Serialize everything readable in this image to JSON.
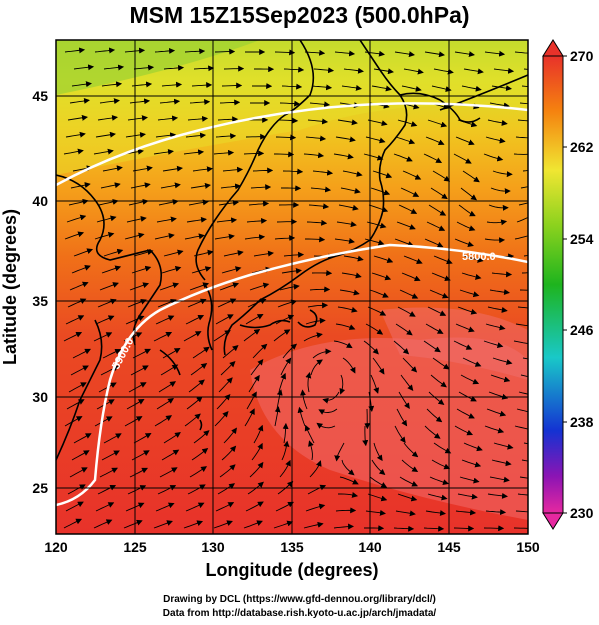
{
  "title": "MSM 15Z15Sep2023 (500.0hPa)",
  "axes": {
    "xlabel": "Longitude (degrees)",
    "ylabel": "Latitude  (degrees)",
    "xticks": [
      "120",
      "125",
      "130",
      "135",
      "140",
      "145",
      "150"
    ],
    "yticks": [
      "25",
      "30",
      "35",
      "40",
      "45"
    ],
    "xlim": [
      120,
      150
    ],
    "ylim": [
      22.4,
      47.6
    ]
  },
  "colorbar": {
    "ticks": [
      "270",
      "262",
      "254",
      "246",
      "238",
      "230"
    ],
    "range": [
      230,
      270
    ],
    "colors": {
      "max": "#e8322a",
      "orange": "#f5820f",
      "yellow": "#f0e632",
      "green": "#1eb41e",
      "cyan": "#19c8c8",
      "blue": "#1432d2",
      "violet": "#8c14b4",
      "min": "#e628a0"
    }
  },
  "contours": [
    {
      "label": "5900.0",
      "color": "#ffffff"
    },
    {
      "label": "5800.0",
      "color": "#ffffff"
    }
  ],
  "credits": {
    "line1": "Drawing by DCL (https://www.gfd-dennou.org/library/dcl/)",
    "line2": "Data from http://database.rish.kyoto-u.ac.jp/arch/jmadata/"
  },
  "chart_data": {
    "type": "heatmap",
    "title": "MSM 15Z15Sep2023 (500.0hPa)",
    "xlabel": "Longitude (degrees)",
    "ylabel": "Latitude  (degrees)",
    "xlim": [
      120,
      150
    ],
    "ylim": [
      22.4,
      47.6
    ],
    "colorbar_range": [
      230,
      270
    ],
    "overlays": [
      "streamlines",
      "coastlines",
      "height contours 5800.0 / 5900.0"
    ]
  }
}
